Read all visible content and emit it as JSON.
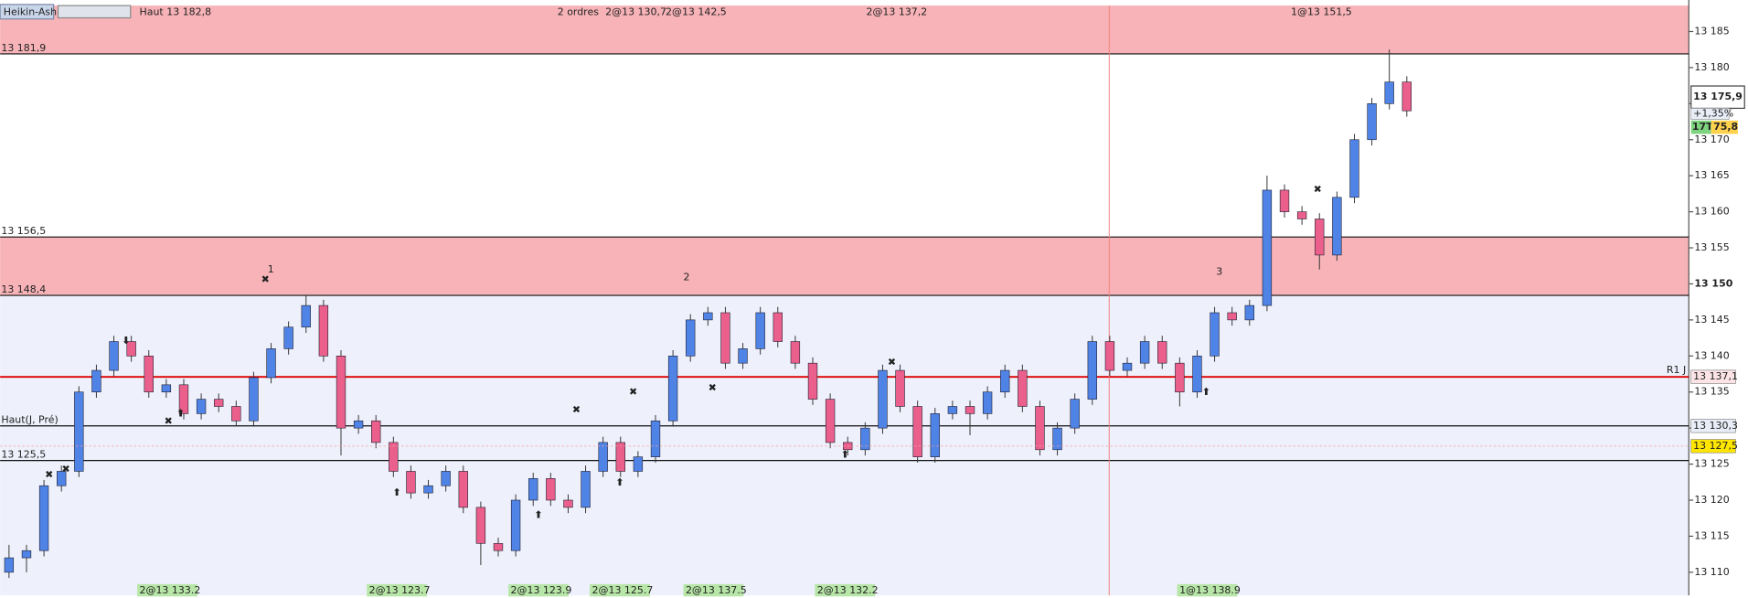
{
  "chart_data": {
    "type": "candlestick",
    "title": "Heikin-Ashi",
    "header_text": "Haut 13 182,8",
    "up_color": "#4f83e6",
    "down_color": "#ea5f8c",
    "ylim": [
      13106.8,
      13188.6
    ],
    "yticks": [
      {
        "value": 13110,
        "label": "13 110"
      },
      {
        "value": 13115,
        "label": "13 115"
      },
      {
        "value": 13120,
        "label": "13 120"
      },
      {
        "value": 13125,
        "label": "13 125"
      },
      {
        "value": 13130,
        "label": "13 130"
      },
      {
        "value": 13135,
        "label": "13 135"
      },
      {
        "value": 13140,
        "label": "13 140"
      },
      {
        "value": 13145,
        "label": "13 145"
      },
      {
        "value": 13150,
        "label": "13 150"
      },
      {
        "value": 13155,
        "label": "13 155"
      },
      {
        "value": 13160,
        "label": "13 160"
      },
      {
        "value": 13165,
        "label": "13 165"
      },
      {
        "value": 13170,
        "label": "13 170"
      },
      {
        "value": 13175,
        "label": "13 175"
      },
      {
        "value": 13180,
        "label": "13 180"
      },
      {
        "value": 13185,
        "label": "13 185"
      }
    ],
    "zones": [
      {
        "from": 13181.9,
        "to": 13188.6
      },
      {
        "from": 13148.4,
        "to": 13156.5
      }
    ],
    "levels": [
      {
        "value": 13181.9,
        "label": "13 181,9"
      },
      {
        "value": 13156.5,
        "label": "13 156,5"
      },
      {
        "value": 13148.4,
        "label": "13 148,4"
      },
      {
        "value": 13130.3,
        "label": "Haut(J, Pré)"
      },
      {
        "value": 13125.5,
        "label": "13 125,5"
      }
    ],
    "pivot": {
      "value": 13137.1,
      "label": "R1 J"
    },
    "price_tags": [
      {
        "value": 13137.1,
        "label": "13 137,1"
      },
      {
        "value": 13130.3,
        "label": "13 130,3"
      },
      {
        "value": 13127.5,
        "label": "13 127,5"
      }
    ],
    "last_price": {
      "value": 13175.9,
      "label": "13 175,9",
      "change": "+1,35%",
      "volume": "17T",
      "tail": "75,8"
    },
    "top_orders": [
      "2 ordres",
      "2@13 130,7",
      "2@13 142,5",
      "2@13 137,2",
      "1@13 151,5"
    ],
    "bottom_orders": [
      "2@13 133.2",
      "2@13 123.7",
      "2@13 123.9",
      "2@13 125.7",
      "2@13 137.5",
      "2@13 132.2",
      "1@13 138.9"
    ],
    "annotations": [
      "1",
      "2",
      "3"
    ],
    "candles": [
      [
        13110,
        13113.8,
        13109.2,
        13112
      ],
      [
        13112,
        13113.8,
        13110,
        13113
      ],
      [
        13113,
        13122.8,
        13112.2,
        13122
      ],
      [
        13122,
        13124.8,
        13121.2,
        13124
      ],
      [
        13124,
        13135.8,
        13123.2,
        13135
      ],
      [
        13135,
        13138.8,
        13134.2,
        13138
      ],
      [
        13138,
        13142.8,
        13137.2,
        13142
      ],
      [
        13142,
        13142.8,
        13139.2,
        13140
      ],
      [
        13140,
        13140.8,
        13134.2,
        13135
      ],
      [
        13135,
        13136.8,
        13134.2,
        13136
      ],
      [
        13136,
        13136.8,
        13131.2,
        13132
      ],
      [
        13132,
        13134.8,
        13131.2,
        13134
      ],
      [
        13134,
        13134.8,
        13132.2,
        13133
      ],
      [
        13133,
        13133.8,
        13130.2,
        13131
      ],
      [
        13131,
        13137.8,
        13130.2,
        13137
      ],
      [
        13137,
        13141.8,
        13136.2,
        13141
      ],
      [
        13141,
        13144.8,
        13140.2,
        13144
      ],
      [
        13144,
        13148.4,
        13143.2,
        13147
      ],
      [
        13147,
        13147.8,
        13139.2,
        13140
      ],
      [
        13140,
        13140.8,
        13126.2,
        13130
      ],
      [
        13130,
        13131.8,
        13129.2,
        13131
      ],
      [
        13131,
        13131.8,
        13127.2,
        13128
      ],
      [
        13128,
        13128.8,
        13123.2,
        13124
      ],
      [
        13124,
        13124.8,
        13120.2,
        13121
      ],
      [
        13121,
        13122.8,
        13120.2,
        13122
      ],
      [
        13122,
        13124.8,
        13121.2,
        13124
      ],
      [
        13124,
        13124.8,
        13118.2,
        13119
      ],
      [
        13119,
        13119.8,
        13111,
        13114
      ],
      [
        13114,
        13114.8,
        13112.2,
        13113
      ],
      [
        13113,
        13120.8,
        13112.2,
        13120
      ],
      [
        13120,
        13123.8,
        13119.2,
        13123
      ],
      [
        13123,
        13123.8,
        13119.2,
        13120
      ],
      [
        13120,
        13120.8,
        13118.2,
        13119
      ],
      [
        13119,
        13124.8,
        13118.2,
        13124
      ],
      [
        13124,
        13128.8,
        13123.2,
        13128
      ],
      [
        13128,
        13128.8,
        13123.2,
        13124
      ],
      [
        13124,
        13126.8,
        13123.2,
        13126
      ],
      [
        13126,
        13131.8,
        13125.2,
        13131
      ],
      [
        13131,
        13140.8,
        13130.2,
        13140
      ],
      [
        13140,
        13145.8,
        13139.2,
        13145
      ],
      [
        13145,
        13146.8,
        13144.2,
        13146
      ],
      [
        13146,
        13146.8,
        13138.2,
        13139
      ],
      [
        13139,
        13141.8,
        13138.2,
        13141
      ],
      [
        13141,
        13146.8,
        13140.2,
        13146
      ],
      [
        13146,
        13146.8,
        13141.2,
        13142
      ],
      [
        13142,
        13142.8,
        13138.2,
        13139
      ],
      [
        13139,
        13139.8,
        13133.2,
        13134
      ],
      [
        13134,
        13134.8,
        13127.2,
        13128
      ],
      [
        13128,
        13128.8,
        13126.2,
        13127
      ],
      [
        13127,
        13130.8,
        13126.2,
        13130
      ],
      [
        13130,
        13138.8,
        13129.2,
        13138
      ],
      [
        13138,
        13138.8,
        13132.2,
        13133
      ],
      [
        13133,
        13133.8,
        13125.2,
        13126
      ],
      [
        13126,
        13132.8,
        13125.2,
        13132
      ],
      [
        13132,
        13133.8,
        13131.2,
        13133
      ],
      [
        13133,
        13133.8,
        13129,
        13132
      ],
      [
        13132,
        13135.8,
        13131.2,
        13135
      ],
      [
        13135,
        13138.8,
        13134.2,
        13138
      ],
      [
        13138,
        13138.8,
        13132.2,
        13133
      ],
      [
        13133,
        13133.8,
        13126.2,
        13127
      ],
      [
        13127,
        13130.8,
        13126.2,
        13130
      ],
      [
        13130,
        13134.8,
        13129.2,
        13134
      ],
      [
        13134,
        13142.8,
        13133.2,
        13142
      ],
      [
        13142,
        13142.8,
        13137.2,
        13138
      ],
      [
        13138,
        13139.8,
        13137.2,
        13139
      ],
      [
        13139,
        13142.8,
        13138.2,
        13142
      ],
      [
        13142,
        13142.8,
        13138.2,
        13139
      ],
      [
        13139,
        13139.8,
        13133,
        13135
      ],
      [
        13135,
        13140.8,
        13134.2,
        13140
      ],
      [
        13140,
        13146.8,
        13139.2,
        13146
      ],
      [
        13146,
        13146.8,
        13144.2,
        13145
      ],
      [
        13145,
        13147.8,
        13144.2,
        13147
      ],
      [
        13147,
        13165,
        13146.2,
        13163
      ],
      [
        13163,
        13163.8,
        13159.2,
        13160
      ],
      [
        13160,
        13160.8,
        13158.2,
        13159
      ],
      [
        13159,
        13159.8,
        13152,
        13154
      ],
      [
        13154,
        13162.8,
        13153.2,
        13162
      ],
      [
        13162,
        13170.8,
        13161.2,
        13170
      ],
      [
        13170,
        13175.8,
        13169.2,
        13175
      ],
      [
        13175,
        13182.5,
        13174.2,
        13178
      ],
      [
        13178,
        13178.8,
        13173.2,
        13174
      ]
    ]
  }
}
